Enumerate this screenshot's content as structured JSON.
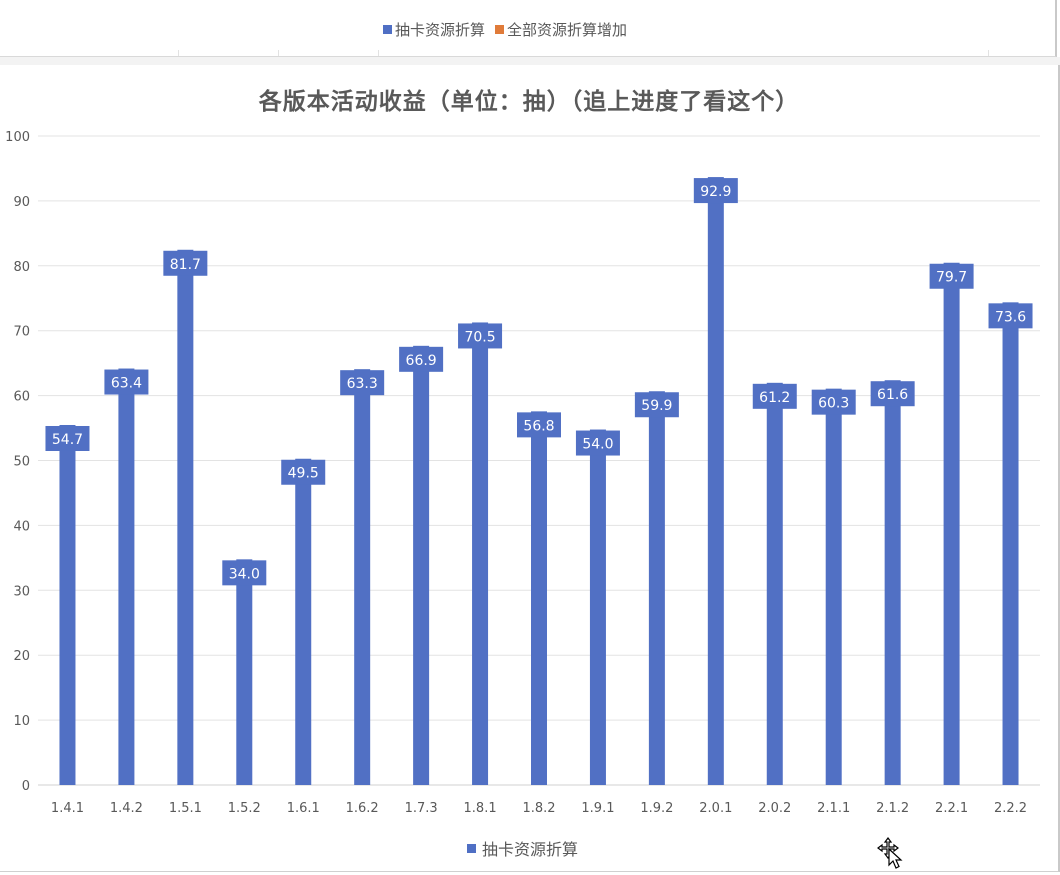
{
  "legend_top": {
    "entries": [
      {
        "label": "抽卡资源折算",
        "color": "#4F6FC4"
      },
      {
        "label": "全部资源折算增加",
        "color": "#E07B39"
      }
    ]
  },
  "chart_data": {
    "type": "bar",
    "title": "各版本活动收益（单位：抽）（追上进度了看这个）",
    "categories": [
      "1.4.1",
      "1.4.2",
      "1.5.1",
      "1.5.2",
      "1.6.1",
      "1.6.2",
      "1.7.3",
      "1.8.1",
      "1.8.2",
      "1.9.1",
      "1.9.2",
      "2.0.1",
      "2.0.2",
      "2.1.1",
      "2.1.2",
      "2.2.1",
      "2.2.2"
    ],
    "series": [
      {
        "name": "抽卡资源折算",
        "color": "#5170C4",
        "values": [
          54.7,
          63.4,
          81.7,
          34.0,
          49.5,
          63.3,
          66.9,
          70.5,
          56.8,
          54.0,
          59.9,
          92.9,
          61.2,
          60.3,
          61.6,
          79.7,
          73.6
        ]
      }
    ],
    "ylim": [
      0,
      100
    ],
    "yticks": [
      0,
      10,
      20,
      30,
      40,
      50,
      60,
      70,
      80,
      90,
      100
    ],
    "grid": true,
    "legend": "bottom",
    "data_labels": true
  },
  "legend_bottom": {
    "label": "抽卡资源折算",
    "color": "#4F6FC4"
  },
  "icons": {
    "cursor": "move-cursor-icon"
  }
}
